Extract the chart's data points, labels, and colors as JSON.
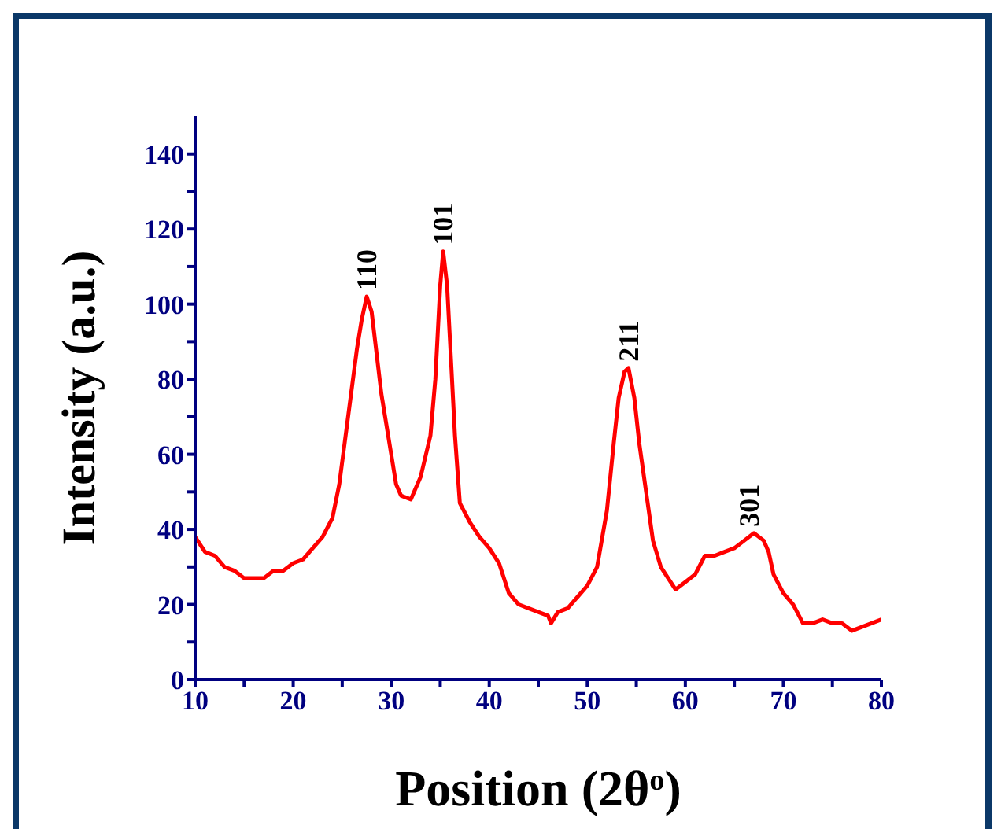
{
  "chart_data": {
    "type": "line",
    "xlabel": "Position (2θ$^{o}$)",
    "ylabel": "Intensity (a.u.)",
    "xlim": [
      10,
      80
    ],
    "ylim": [
      0,
      150
    ],
    "xticks": [
      10,
      {
        "value": 15,
        "label": null
      },
      20,
      {
        "value": 25,
        "label": null
      },
      30,
      {
        "value": 35,
        "label": null
      },
      40,
      {
        "value": 45,
        "label": null
      },
      50,
      {
        "value": 55,
        "label": null
      },
      60,
      {
        "value": 65,
        "label": null
      },
      70,
      {
        "value": 75,
        "label": null
      },
      80
    ],
    "yticks": [
      0,
      {
        "value": 10,
        "label": null
      },
      20,
      {
        "value": 30,
        "label": null
      },
      40,
      {
        "value": 50,
        "label": null
      },
      60,
      {
        "value": 70,
        "label": null
      },
      80,
      {
        "value": 90,
        "label": null
      },
      100,
      {
        "value": 110,
        "label": null
      },
      120,
      {
        "value": 130,
        "label": null
      },
      140
    ],
    "grid": false,
    "legend": false,
    "marker": "none",
    "line_style": "solid",
    "x": [
      10,
      11,
      12,
      13,
      14,
      15,
      16,
      17,
      18,
      19,
      20,
      21,
      22,
      23,
      24,
      24.7,
      25.5,
      26,
      26.5,
      27,
      27.5,
      28,
      28.5,
      29,
      29.5,
      30,
      30.5,
      31,
      32,
      33,
      34,
      34.5,
      35,
      35.3,
      35.7,
      36,
      36.5,
      37,
      38,
      39,
      40,
      41,
      42,
      43,
      44,
      45,
      46,
      46.3,
      47,
      48,
      49,
      50,
      51,
      52,
      52.7,
      53.2,
      53.8,
      54.2,
      54.8,
      55.3,
      56,
      56.7,
      57.5,
      58.5,
      59,
      60,
      61,
      62,
      63,
      64,
      65,
      66,
      67,
      68,
      68.5,
      69,
      70,
      71,
      72,
      73,
      74,
      75,
      76,
      77,
      78,
      79,
      80
    ],
    "series": [
      {
        "color": "#ff0000",
        "values": [
          38,
          34,
          33,
          30,
          29,
          27,
          27,
          27,
          29,
          29,
          31,
          32,
          35,
          38,
          43,
          52,
          68,
          78,
          88,
          96,
          102,
          98,
          87,
          76,
          68,
          60,
          52,
          49,
          48,
          54,
          65,
          80,
          105,
          114,
          105,
          90,
          65,
          47,
          42,
          38,
          35,
          31,
          23,
          20,
          19,
          18,
          17,
          15,
          18,
          19,
          22,
          25,
          30,
          45,
          63,
          75,
          82,
          83,
          75,
          63,
          50,
          37,
          30,
          26,
          24,
          26,
          28,
          33,
          33,
          34,
          35,
          37,
          39,
          37,
          34,
          28,
          23,
          20,
          15,
          15,
          16,
          15,
          15,
          13,
          14,
          15,
          16
        ]
      }
    ],
    "annotations": [
      {
        "text": "110",
        "x": 27.5,
        "y": 102
      },
      {
        "text": "101",
        "x": 35.3,
        "y": 114
      },
      {
        "text": "211",
        "x": 54.2,
        "y": 83
      },
      {
        "text": "301",
        "x": 66.5,
        "y": 39
      }
    ]
  }
}
